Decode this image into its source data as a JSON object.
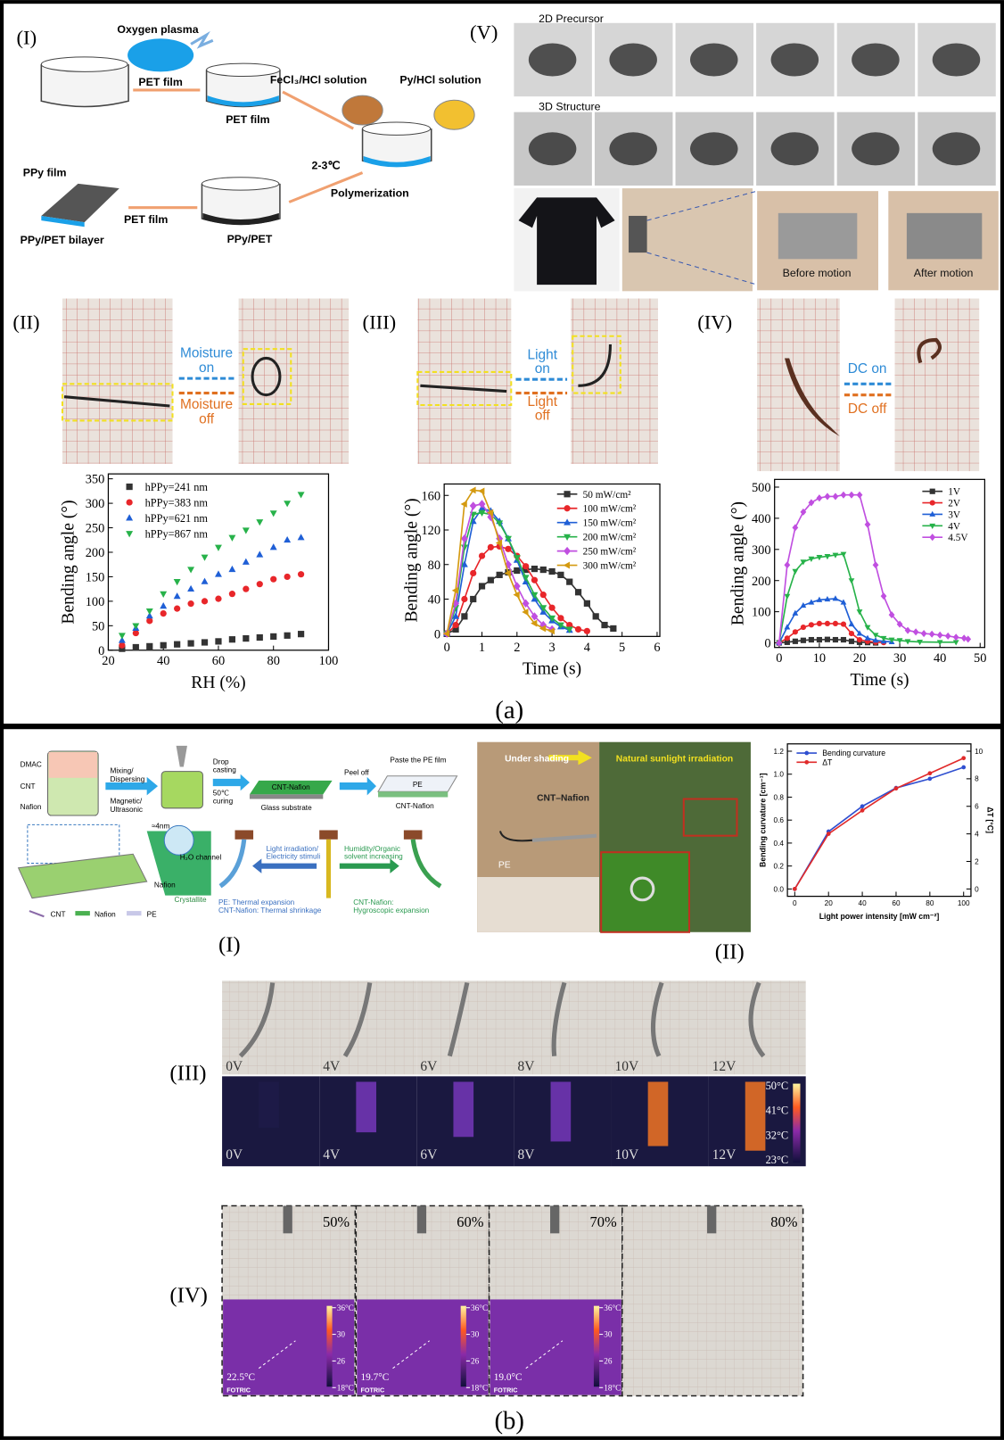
{
  "a": {
    "label": "(a)",
    "I": {
      "label": "(I)",
      "oxygen_plasma": "Oxygen plasma",
      "pet_film_1": "PET film",
      "pet_film_2": "PET film",
      "fecl3": "FeCl₃/HCl solution",
      "py_hcl": "Py/HCl solution",
      "temp": "2-3℃",
      "polymerization": "Polymerization",
      "ppy_film": "PPy film",
      "pet_film_3": "PET film",
      "bilayer": "PPy/PET bilayer",
      "ppy_pet": "PPy/PET"
    },
    "V": {
      "label": "(V)",
      "precursor": "2D Precursor",
      "structure": "3D Structure",
      "before": "Before motion",
      "after": "After motion"
    },
    "II": {
      "label": "(II)",
      "on": [
        "Moisture",
        "on"
      ],
      "off": [
        "Moisture",
        "off"
      ]
    },
    "III": {
      "label": "(III)",
      "on": [
        "Light",
        "on"
      ],
      "off": [
        "Light",
        "off"
      ]
    },
    "IV": {
      "label": "(IV)",
      "on": "DC on",
      "off": "DC off"
    }
  },
  "charts": [
    {
      "type": "scatter",
      "xlabel": "RH (%)",
      "ylabel": "Bending angle (°)",
      "xlim": [
        20,
        100
      ],
      "xticks": [
        20,
        40,
        60,
        80,
        100
      ],
      "ylim": [
        0,
        360
      ],
      "yticks": [
        0,
        50,
        100,
        150,
        200,
        250,
        300,
        350
      ],
      "legend": "upper left",
      "series": [
        {
          "name": "hPPy=241 nm",
          "color": "#333333",
          "marker": "square",
          "x": [
            25,
            30,
            35,
            40,
            45,
            50,
            55,
            60,
            65,
            70,
            75,
            80,
            85,
            90
          ],
          "values": [
            3,
            6,
            8,
            10,
            12,
            14,
            16,
            18,
            22,
            24,
            26,
            28,
            30,
            33
          ]
        },
        {
          "name": "hPPy=383 nm",
          "color": "#e8262a",
          "marker": "circle",
          "x": [
            25,
            30,
            35,
            40,
            45,
            50,
            55,
            60,
            65,
            70,
            75,
            80,
            85,
            90
          ],
          "values": [
            10,
            35,
            60,
            75,
            85,
            95,
            100,
            105,
            115,
            125,
            135,
            145,
            150,
            155
          ]
        },
        {
          "name": "hPPy=621 nm",
          "color": "#1f5fd6",
          "marker": "triangle",
          "x": [
            25,
            30,
            35,
            40,
            45,
            50,
            55,
            60,
            65,
            70,
            75,
            80,
            85,
            90
          ],
          "values": [
            20,
            45,
            70,
            90,
            110,
            125,
            140,
            155,
            165,
            180,
            195,
            210,
            225,
            230
          ]
        },
        {
          "name": "hPPy=867 nm",
          "color": "#27b24a",
          "marker": "triangle_down",
          "x": [
            25,
            30,
            35,
            40,
            45,
            50,
            55,
            60,
            65,
            70,
            75,
            80,
            85,
            90
          ],
          "values": [
            30,
            50,
            80,
            115,
            140,
            165,
            190,
            210,
            230,
            245,
            262,
            280,
            300,
            318
          ]
        }
      ]
    },
    {
      "type": "line",
      "xlabel": "Time (s)",
      "ylabel": "Bending angle (°)",
      "xlim": [
        0,
        6
      ],
      "xticks": [
        0,
        1,
        2,
        3,
        4,
        5,
        6
      ],
      "ylim": [
        0,
        170
      ],
      "yticks": [
        0,
        40,
        80,
        120,
        160
      ],
      "legend": "upper right",
      "series": [
        {
          "name": "50 mW/cm²",
          "color": "#333333",
          "marker": "square",
          "x": [
            0,
            0.25,
            0.5,
            0.75,
            1,
            1.25,
            1.5,
            1.75,
            2,
            2.25,
            2.5,
            2.75,
            3,
            3.25,
            3.5,
            3.75,
            4,
            4.25,
            4.5,
            4.75
          ],
          "values": [
            0,
            5,
            20,
            40,
            55,
            62,
            68,
            71,
            73,
            74,
            75,
            74,
            72,
            68,
            60,
            48,
            35,
            20,
            10,
            6
          ]
        },
        {
          "name": "100 mW/cm²",
          "color": "#e8262a",
          "marker": "circle",
          "x": [
            0,
            0.25,
            0.5,
            0.75,
            1,
            1.25,
            1.5,
            1.75,
            2,
            2.25,
            2.5,
            2.75,
            3,
            3.25,
            3.5,
            3.75,
            4
          ],
          "values": [
            0,
            10,
            40,
            70,
            90,
            100,
            101,
            98,
            90,
            78,
            62,
            45,
            30,
            18,
            10,
            5,
            3
          ]
        },
        {
          "name": "150 mW/cm²",
          "color": "#1f5fd6",
          "marker": "triangle",
          "x": [
            0,
            0.25,
            0.5,
            0.75,
            1,
            1.25,
            1.5,
            1.75,
            2,
            2.25,
            2.5,
            2.75,
            3,
            3.25,
            3.5
          ],
          "values": [
            0,
            20,
            80,
            130,
            145,
            142,
            130,
            110,
            85,
            60,
            40,
            25,
            15,
            8,
            4
          ]
        },
        {
          "name": "200 mW/cm²",
          "color": "#27b24a",
          "marker": "triangle_down",
          "x": [
            0,
            0.25,
            0.5,
            0.75,
            1,
            1.25,
            1.5,
            1.75,
            2,
            2.25,
            2.5,
            2.75,
            3,
            3.25,
            3.5
          ],
          "values": [
            0,
            30,
            100,
            138,
            140,
            138,
            128,
            110,
            88,
            65,
            45,
            30,
            18,
            10,
            5
          ]
        },
        {
          "name": "250 mW/cm²",
          "color": "#c04fe0",
          "marker": "diamond",
          "x": [
            0,
            0.25,
            0.5,
            0.75,
            1,
            1.25,
            1.5,
            1.75,
            2,
            2.25,
            2.5,
            2.75,
            3
          ],
          "values": [
            0,
            35,
            110,
            148,
            150,
            135,
            110,
            80,
            55,
            35,
            20,
            10,
            5
          ]
        },
        {
          "name": "300 mW/cm²",
          "color": "#d49a10",
          "marker": "triangle_left",
          "x": [
            0,
            0.25,
            0.5,
            0.75,
            1,
            1.25,
            1.5,
            1.75,
            2,
            2.25,
            2.5,
            2.75,
            3
          ],
          "values": [
            0,
            50,
            150,
            166,
            165,
            140,
            105,
            70,
            45,
            25,
            12,
            6,
            3
          ]
        }
      ]
    },
    {
      "type": "line",
      "xlabel": "Time (s)",
      "ylabel": "Bending angle (°)",
      "xlim": [
        0,
        50
      ],
      "xticks": [
        0,
        10,
        20,
        30,
        40,
        50
      ],
      "ylim": [
        0,
        510
      ],
      "yticks": [
        0,
        100,
        200,
        300,
        400,
        500
      ],
      "legend": "upper right",
      "series": [
        {
          "name": "1V",
          "color": "#333333",
          "marker": "square",
          "x": [
            0,
            2,
            4,
            6,
            8,
            10,
            12,
            14,
            16,
            18,
            20,
            22,
            24
          ],
          "values": [
            0,
            2,
            5,
            8,
            10,
            10,
            11,
            10,
            10,
            5,
            2,
            1,
            0
          ]
        },
        {
          "name": "2V",
          "color": "#e8262a",
          "marker": "circle",
          "x": [
            0,
            2,
            4,
            6,
            8,
            10,
            12,
            14,
            16,
            18,
            20,
            22,
            24,
            26
          ],
          "values": [
            0,
            15,
            35,
            50,
            58,
            62,
            62,
            62,
            60,
            30,
            10,
            5,
            2,
            1
          ]
        },
        {
          "name": "3V",
          "color": "#1f5fd6",
          "marker": "triangle",
          "x": [
            0,
            2,
            4,
            6,
            8,
            10,
            12,
            14,
            16,
            18,
            20,
            22,
            24,
            26,
            28
          ],
          "values": [
            0,
            50,
            95,
            120,
            130,
            138,
            140,
            142,
            130,
            60,
            30,
            15,
            8,
            5,
            3
          ]
        },
        {
          "name": "4V",
          "color": "#27b24a",
          "marker": "triangle_down",
          "x": [
            0,
            2,
            4,
            6,
            8,
            10,
            12,
            14,
            16,
            18,
            20,
            22,
            24,
            26,
            28,
            30,
            32,
            35,
            40,
            44
          ],
          "values": [
            0,
            150,
            230,
            260,
            270,
            275,
            278,
            282,
            285,
            200,
            100,
            50,
            25,
            15,
            10,
            8,
            5,
            3,
            2,
            2
          ]
        },
        {
          "name": "4.5V",
          "color": "#c04fe0",
          "marker": "diamond",
          "x": [
            0,
            2,
            4,
            6,
            8,
            10,
            12,
            14,
            16,
            18,
            20,
            22,
            24,
            26,
            28,
            30,
            32,
            34,
            36,
            38,
            40,
            42,
            44,
            46,
            47
          ],
          "values": [
            0,
            250,
            370,
            420,
            450,
            465,
            470,
            470,
            475,
            475,
            475,
            380,
            250,
            150,
            90,
            60,
            40,
            35,
            30,
            28,
            25,
            22,
            18,
            15,
            12
          ]
        }
      ]
    },
    {
      "type": "line",
      "xlabel": "Light  power  intensity [mW cm⁻²]",
      "ylabel": "Bending curvature [cm⁻¹]",
      "y2label": "ΔT [°C]",
      "xlim": [
        0,
        100
      ],
      "xticks": [
        0,
        20,
        40,
        60,
        80,
        100
      ],
      "ylim": [
        0,
        1.2
      ],
      "yticks": [
        {
          "value": 0,
          "label": "0.0"
        },
        0.2,
        0.4,
        0.6,
        0.8,
        {
          "value": 1,
          "label": "1.0"
        },
        1.2
      ],
      "y2lim": [
        0,
        10
      ],
      "y2ticks": [
        0,
        2,
        4,
        6,
        8,
        10
      ],
      "legend": "upper left",
      "series": [
        {
          "name": "Bending curvature",
          "color": "#2f4fd0",
          "marker": "circle",
          "x": [
            0,
            20,
            40,
            60,
            80,
            100
          ],
          "values": [
            0,
            0.5,
            0.72,
            0.88,
            0.96,
            1.06
          ]
        },
        {
          "name": "ΔT",
          "color": "#e02a2a",
          "marker": "circle",
          "axis": "y2",
          "x": [
            0,
            20,
            40,
            60,
            80,
            100
          ],
          "values": [
            0,
            4,
            5.7,
            7.3,
            8.4,
            9.5
          ]
        }
      ]
    }
  ],
  "b": {
    "label": "(b)",
    "I": {
      "label": "(I)",
      "dmac": "DMAC",
      "cnt": "CNT",
      "nafion": "Nafion",
      "mixing": [
        "Mixing/",
        "Dispersing"
      ],
      "magnetic": [
        "Magnetic/",
        "Ultrasonic"
      ],
      "drop": [
        "Drop",
        "casting"
      ],
      "curing": [
        "50℃",
        "curing"
      ],
      "film": "CNT-Nafion",
      "glass": "Glass substrate",
      "peel": "Peel off",
      "paste": "Paste the PE film",
      "pe": "PE",
      "cnt_nafion": "CNT-Nafion",
      "channel_size": "≈4nm",
      "channel": "H₂O channel",
      "nafion2": "Nafion",
      "crystallite": "Crystallite",
      "legend": [
        "CNT",
        "Nafion",
        "PE"
      ],
      "light": [
        "Light irradiation/",
        "Electricity stimuli"
      ],
      "humidity": [
        "Humidity/Organic",
        "solvent increasing"
      ],
      "pe_note": "PE: Thermal expansion",
      "cnt_note": "CNT-Nafion: Thermal shrinkage",
      "hygro": [
        "CNT-Nafion:",
        "Hygroscopic expansion"
      ]
    },
    "photo": {
      "shading": "Under shading",
      "sunlight": "Natural sunlight irradiation",
      "cnt": "CNT–Nafion",
      "pe": "PE"
    },
    "II": {
      "label": "(II)"
    },
    "III": {
      "label": "(III)",
      "voltages": [
        "0V",
        "4V",
        "6V",
        "8V",
        "10V",
        "12V"
      ],
      "thermal_voltages": [
        "0V",
        "4V",
        "6V",
        "8V",
        "10V",
        "12V"
      ],
      "scale": [
        "50°C",
        "41°C",
        "32°C",
        "23°C"
      ]
    },
    "IV": {
      "label": "(IV)",
      "humidity": [
        "50%",
        "60%",
        "70%",
        "80%"
      ],
      "temps": [
        "22.5°C",
        "19.7°C",
        "19.0°C"
      ],
      "scales": [
        [
          "36°C",
          "30",
          "26",
          "18°C"
        ],
        [
          "36°C",
          "30",
          "26",
          "18°C"
        ],
        [
          "36°C",
          "30",
          "26",
          "18°C"
        ]
      ],
      "brand": [
        "FOTRIC",
        "FOTRIC",
        "FOTRIC"
      ]
    }
  }
}
